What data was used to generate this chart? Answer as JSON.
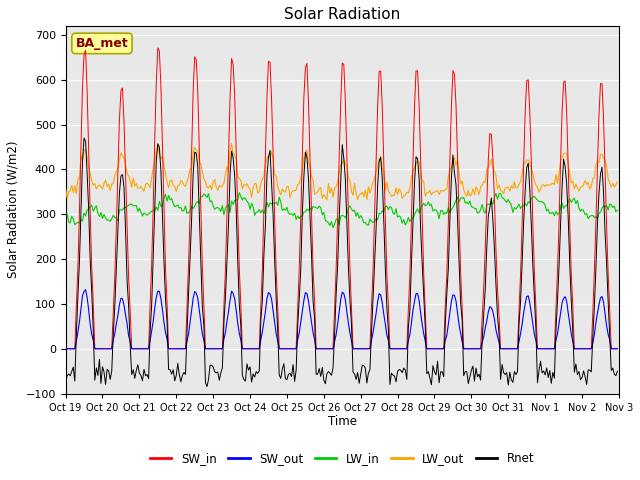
{
  "title": "Solar Radiation",
  "ylabel": "Solar Radiation (W/m2)",
  "xlabel": "Time",
  "ylim": [
    -100,
    720
  ],
  "yticks": [
    -100,
    0,
    100,
    200,
    300,
    400,
    500,
    600,
    700
  ],
  "n_days": 15,
  "dt": 1.0,
  "colors": {
    "SW_in": "#ff0000",
    "SW_out": "#0000ff",
    "LW_in": "#00cc00",
    "LW_out": "#ffa500",
    "Rnet": "#000000"
  },
  "legend_label": "BA_met",
  "legend_text_color": "#880000",
  "legend_box_facecolor": "#ffff99",
  "legend_box_edgecolor": "#aaa800",
  "plot_bg_color": "#e8e8e8",
  "fig_bg_color": "#ffffff",
  "grid_color": "#ffffff",
  "sw_in_peaks": [
    670,
    585,
    680,
    660,
    650,
    645,
    640,
    640,
    625,
    625,
    625,
    490,
    610,
    605,
    600
  ],
  "tick_labels": [
    "Oct 19",
    "Oct 20",
    "Oct 21",
    "Oct 22",
    "Oct 23",
    "Oct 24",
    "Oct 25",
    "Oct 26",
    "Oct 27",
    "Oct 28",
    "Oct 29",
    "Oct 30",
    "Oct 31",
    "Nov 1",
    "Nov 2",
    "Nov 3"
  ],
  "legend_entries": [
    "SW_in",
    "SW_out",
    "LW_in",
    "LW_out",
    "Rnet"
  ]
}
